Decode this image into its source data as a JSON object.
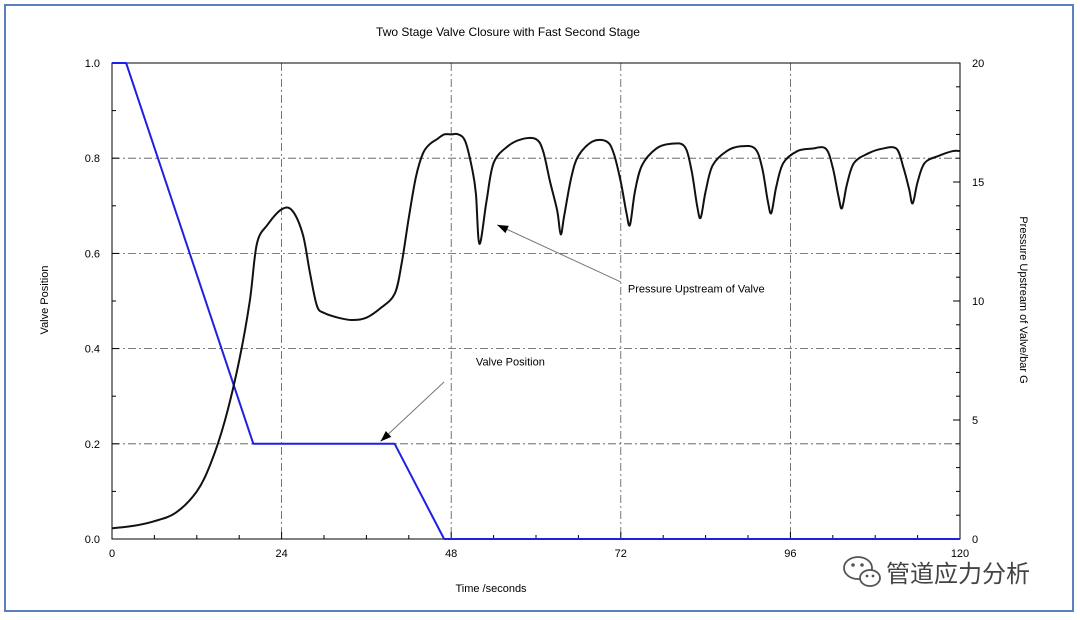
{
  "chart_data": {
    "type": "line",
    "title": "Two Stage Valve Closure with Fast Second Stage",
    "xlabel": "Time /seconds",
    "ylabel_left": "Valve Position",
    "ylabel_right": "Pressure Upstream of Valve/bar G",
    "xlim": [
      0,
      120
    ],
    "ylim_left": [
      0,
      1.0
    ],
    "ylim_right": [
      0,
      20
    ],
    "x_ticks": [
      "0",
      "24",
      "48",
      "72",
      "96",
      "120"
    ],
    "y_left_ticks": [
      "0.0",
      "0.2",
      "0.4",
      "0.6",
      "0.8",
      "1.0"
    ],
    "y_right_ticks": [
      "0",
      "5",
      "10",
      "15",
      "20"
    ],
    "grid": true,
    "series": [
      {
        "name": "Valve Position",
        "axis": "left",
        "color": "#1f1fe6",
        "x": [
          0,
          2,
          20,
          40,
          47,
          120
        ],
        "y": [
          1.0,
          1.0,
          0.2,
          0.2,
          0.0,
          0.0
        ]
      },
      {
        "name": "Pressure Upstream of Valve",
        "axis": "right",
        "color": "#111111",
        "x": [
          0,
          3,
          6,
          9,
          12,
          14,
          16,
          18,
          19.5,
          20.5,
          22,
          24,
          25.5,
          27,
          28,
          29,
          30,
          32,
          34,
          36,
          38,
          40,
          41,
          42,
          43,
          44,
          45,
          46,
          47,
          48,
          49,
          50,
          51,
          51.5,
          52,
          53,
          54,
          56,
          58,
          60,
          61,
          62,
          63,
          63.5,
          64,
          65,
          66,
          68,
          70,
          71,
          72,
          72.8,
          73.3,
          74,
          75,
          77,
          79,
          81,
          82,
          82.8,
          83.3,
          84,
          85,
          87,
          89,
          91,
          92,
          92.8,
          93.3,
          94,
          95,
          97,
          99,
          101,
          102,
          102.8,
          103.3,
          104,
          105,
          107,
          109,
          111,
          112,
          112.8,
          113.3,
          114,
          115,
          117,
          119,
          120
        ],
        "y": [
          0.45,
          0.55,
          0.75,
          1.1,
          2.0,
          3.2,
          5.0,
          7.5,
          10.0,
          12.4,
          13.2,
          13.85,
          13.8,
          12.8,
          11.2,
          9.8,
          9.5,
          9.3,
          9.2,
          9.3,
          9.7,
          10.3,
          11.6,
          13.5,
          15.2,
          16.2,
          16.6,
          16.8,
          17.0,
          17.0,
          17.0,
          16.7,
          15.5,
          14.5,
          12.4,
          14.2,
          15.8,
          16.5,
          16.8,
          16.8,
          16.3,
          15.0,
          13.8,
          12.8,
          13.6,
          15.2,
          16.1,
          16.7,
          16.7,
          16.2,
          15.0,
          13.7,
          13.2,
          14.6,
          15.7,
          16.4,
          16.6,
          16.5,
          15.5,
          14.0,
          13.5,
          14.6,
          15.7,
          16.3,
          16.5,
          16.4,
          15.6,
          14.2,
          13.7,
          14.8,
          15.8,
          16.3,
          16.4,
          16.4,
          15.6,
          14.4,
          13.9,
          14.9,
          15.8,
          16.2,
          16.4,
          16.4,
          15.6,
          14.7,
          14.1,
          15.0,
          15.8,
          16.1,
          16.3,
          16.3
        ]
      }
    ],
    "annotations": [
      {
        "text": "Pressure Upstream of Valve",
        "label_at": [
          73,
          10.35
        ],
        "arrow_from": [
          72,
          10.8
        ],
        "arrow_to": [
          54.5,
          13.2
        ]
      },
      {
        "text": "Valve Position",
        "label_at": [
          51.5,
          0.365
        ],
        "arrow_from": [
          47,
          0.33
        ],
        "arrow_to": [
          38,
          0.205
        ]
      }
    ]
  },
  "watermark": {
    "text": "管道应力分析",
    "icon": "wechat-logo-icon"
  }
}
